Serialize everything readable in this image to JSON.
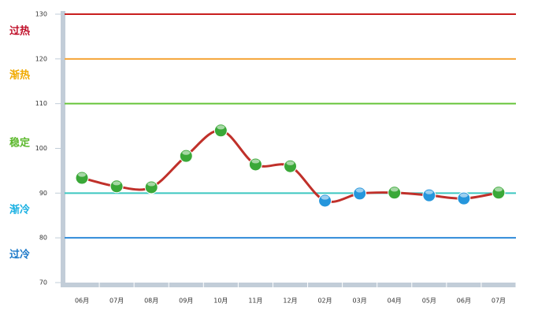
{
  "chart_data": {
    "type": "line",
    "categories": [
      "06月",
      "07月",
      "08月",
      "09月",
      "10月",
      "11月",
      "12月",
      "02月",
      "03月",
      "04月",
      "05月",
      "06月",
      "07月"
    ],
    "series": [
      {
        "color": "#c0302a",
        "values": [
          93.4,
          91.5,
          91.3,
          98.3,
          104.0,
          96.4,
          96.0,
          88.3,
          89.9,
          90.1,
          89.5,
          88.8,
          90.1
        ],
        "marker_colors": [
          "#3aa838",
          "#3aa838",
          "#3aa838",
          "#3aa838",
          "#3aa838",
          "#3aa838",
          "#3aa838",
          "#2596dc",
          "#2596dc",
          "#3aa838",
          "#2596dc",
          "#2596dc",
          "#3aa838"
        ]
      }
    ],
    "ylim": [
      70,
      130
    ],
    "yticks": [
      70,
      80,
      90,
      100,
      110,
      120,
      130
    ],
    "reference_lines": [
      {
        "value": 130,
        "color": "#c81e1e"
      },
      {
        "value": 120,
        "color": "#f5a436"
      },
      {
        "value": 110,
        "color": "#66c43a"
      },
      {
        "value": 90,
        "color": "#3cc6c0"
      },
      {
        "value": 80,
        "color": "#2e8ad8"
      }
    ],
    "zones": [
      {
        "label": "过热",
        "color": "#c0102a"
      },
      {
        "label": "渐热",
        "color": "#f0aa00"
      },
      {
        "label": "稳定",
        "color": "#5cb82c"
      },
      {
        "label": "渐冷",
        "color": "#18b0e2"
      },
      {
        "label": "过冷",
        "color": "#1a78c8"
      }
    ]
  }
}
